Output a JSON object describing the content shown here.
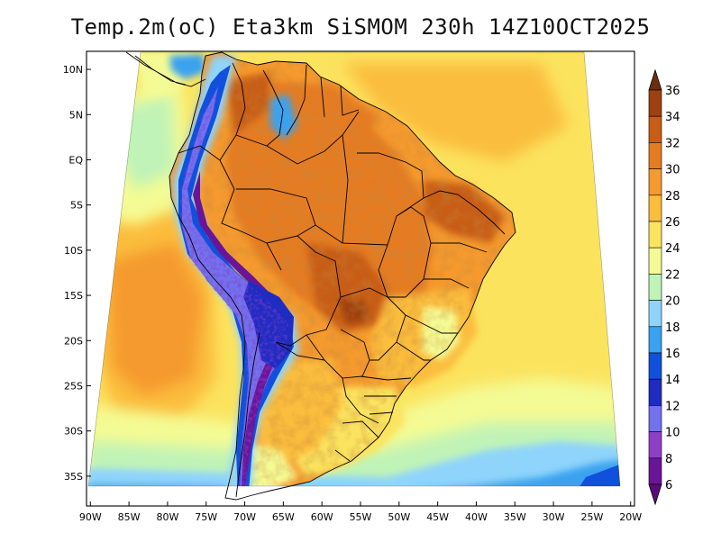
{
  "title": "Temp.2m(oC) Eta3km SiSMOM 230h 14Z10OCT2025",
  "map": {
    "variable": "2 m air temperature",
    "units": "oC",
    "region": "South America",
    "lat_labels": [
      "10N",
      "5N",
      "EQ",
      "5S",
      "10S",
      "15S",
      "20S",
      "25S",
      "30S",
      "35S"
    ],
    "lat_values": [
      10,
      5,
      0,
      -5,
      -10,
      -15,
      -20,
      -25,
      -30,
      -35
    ],
    "lon_labels": [
      "90W",
      "85W",
      "80W",
      "75W",
      "70W",
      "65W",
      "60W",
      "55W",
      "50W",
      "45W",
      "40W",
      "35W",
      "30W",
      "25W",
      "20W"
    ],
    "lon_values": [
      -90,
      -85,
      -80,
      -75,
      -70,
      -65,
      -60,
      -55,
      -50,
      -45,
      -40,
      -35,
      -30,
      -25,
      -20
    ],
    "lat_range": [
      -38.3,
      12
    ],
    "lon_range": [
      -90.5,
      -19.5
    ]
  },
  "colorbar": {
    "levels": [
      "36",
      "34",
      "32",
      "30",
      "28",
      "26",
      "24",
      "22",
      "20",
      "18",
      "16",
      "14",
      "12",
      "10",
      "8",
      "6"
    ],
    "colors": {
      "below_6": "#5a0d7a",
      "c6_8": "#6a1598",
      "c8_10": "#8e3fc7",
      "c10_12": "#7272ee",
      "c12_14": "#1e2cc2",
      "c14_16": "#1050dc",
      "c16_18": "#3aa2f0",
      "c18_20": "#8fd4fb",
      "c20_22": "#c0f3b7",
      "c22_24": "#f4fb94",
      "c24_26": "#fbe35e",
      "c26_28": "#fbbd3c",
      "c28_30": "#f59a2e",
      "c30_32": "#e57c22",
      "c32_34": "#c85d16",
      "c34_36": "#9e4110",
      "above_36": "#6e2d0d"
    }
  }
}
